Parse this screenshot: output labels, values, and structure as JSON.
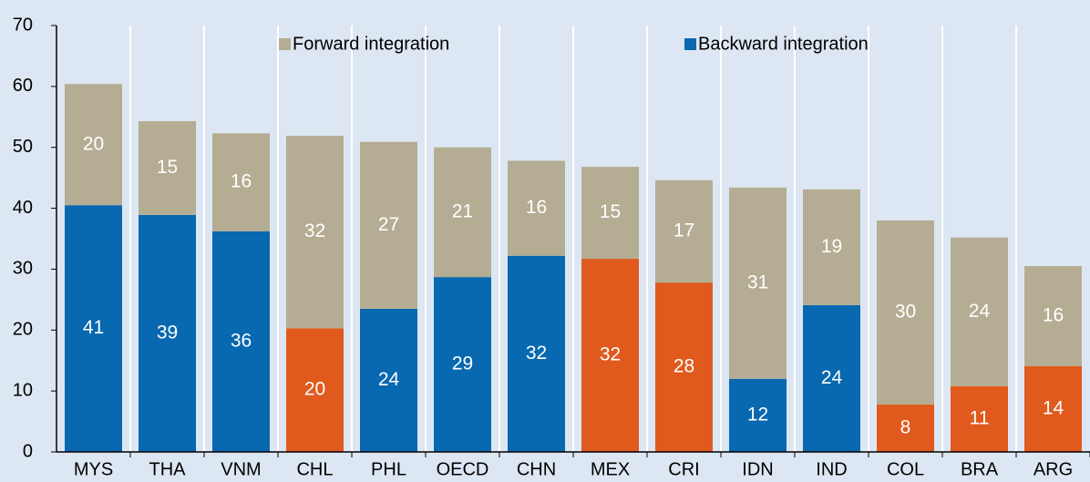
{
  "chart_data": {
    "type": "stacked_bar",
    "categories": [
      "MYS",
      "THA",
      "VNM",
      "CHL",
      "PHL",
      "OECD",
      "CHN",
      "MEX",
      "CRI",
      "IDN",
      "IND",
      "COL",
      "BRA",
      "ARG"
    ],
    "series": [
      {
        "name": "Backward integration",
        "color": "#0868b0",
        "colors": [
          "#0868b0",
          "#0868b0",
          "#0868b0",
          "#e05a1e",
          "#0868b0",
          "#0868b0",
          "#0868b0",
          "#e05a1e",
          "#e05a1e",
          "#0868b0",
          "#0868b0",
          "#e05a1e",
          "#e05a1e",
          "#e05a1e"
        ],
        "values": [
          40.5,
          38.9,
          36.2,
          20.3,
          23.5,
          28.7,
          32.2,
          31.7,
          27.8,
          12.0,
          24.1,
          7.8,
          10.8,
          14.1
        ],
        "value_labels": [
          "41",
          "39",
          "36",
          "20",
          "24",
          "29",
          "32",
          "32",
          "28",
          "12",
          "24",
          "8",
          "11",
          "14"
        ]
      },
      {
        "name": "Forward integration",
        "color": "#b4ad93",
        "values": [
          19.9,
          15.4,
          16.1,
          31.6,
          27.4,
          21.3,
          15.6,
          15.1,
          16.8,
          31.4,
          19.0,
          30.2,
          24.4,
          16.4
        ],
        "value_labels": [
          "20",
          "15",
          "16",
          "32",
          "27",
          "21",
          "16",
          "15",
          "17",
          "31",
          "19",
          "30",
          "24",
          "16"
        ]
      }
    ],
    "ylim": [
      0,
      70
    ],
    "yticks": [
      0,
      10,
      20,
      30,
      40,
      50,
      60,
      70
    ],
    "grid": true
  }
}
